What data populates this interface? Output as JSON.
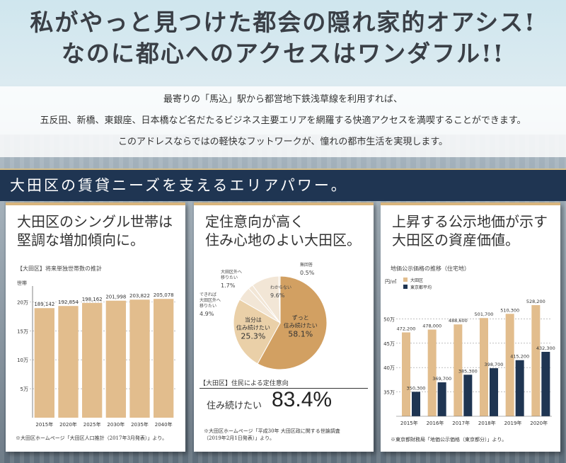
{
  "headline": {
    "line1": "私がやっと見つけた都会の隠れ家的オアシス!",
    "line2": "なのに都心へのアクセスはワンダフル!!"
  },
  "intro": {
    "l1": "最寄りの「馬込」駅から都営地下鉄浅草線を利用すれば、",
    "l2": "五反田、新橋、東銀座、日本橋など名だたるビジネス主要エリアを網羅する快適アクセスを満喫することができます。",
    "l3": "このアドレスならではの軽快なフットワークが、憧れの都市生活を実現します。"
  },
  "band": {
    "title": "大田区の賃貸ニーズを支えるエリアパワー。"
  },
  "panel1": {
    "title": "大田区のシングル世帯は\n堅調な増加傾向に。",
    "subtitle": "【大田区】将来単独世帯数の推計",
    "footnote": "※大田区ホームページ「大田区人口推計（2017年3月発表）」より。"
  },
  "panel2": {
    "title": "定住意向が高く\n住み心地のよい大田区。",
    "subheader": "【大田区】住民による定住意向",
    "big_label": "住み続けたい",
    "big_value": "83.4%",
    "footnote": "※大田区ホームページ「平成30年 大田区政に関する世論調査\n（2019年2月1日発表）」より。"
  },
  "panel3": {
    "title": "上昇する公示地価が示す\n大田区の資産価値。",
    "subtitle": "地価公示価格の推移（住宅地）",
    "footnote": "※東京都財務局「地価公示価格（東京都分）」より。"
  },
  "colors": {
    "tan": "#e2bd8d",
    "navy": "#1f3552",
    "pie_main": "#d2a062",
    "pie_light": "#ead0a8",
    "pie_pale": "#f2e6d6"
  },
  "chart_data": [
    {
      "type": "bar",
      "categories": [
        "2015年",
        "2020年",
        "2025年",
        "2030年",
        "2035年",
        "2040年"
      ],
      "values": [
        189142,
        192854,
        198162,
        201998,
        203822,
        205078
      ],
      "value_labels": [
        "189,142",
        "192,854",
        "198,162",
        "201,998",
        "203,822",
        "205,078"
      ],
      "ylim": [
        0,
        220000
      ],
      "yticks": [
        {
          "v": 50000,
          "label": "5万"
        },
        {
          "v": 100000,
          "label": "10万"
        },
        {
          "v": 150000,
          "label": "15万"
        },
        {
          "v": 200000,
          "label": "20万"
        }
      ],
      "ylabel": "世帯",
      "grid": true
    },
    {
      "type": "pie",
      "slices": [
        {
          "label": "ずっと\n住み続けたい",
          "value": 58.1,
          "color": "#d2a062"
        },
        {
          "label": "当分は\n住み続けたい",
          "value": 25.3,
          "color": "#ead0a8"
        },
        {
          "label": "できれば\n大田区外へ\n移りたい",
          "value": 4.9,
          "color": "#f2e6d6"
        },
        {
          "label": "大田区外へ\n移りたい",
          "value": 1.7,
          "color": "#f2e6d6"
        },
        {
          "label": "わからない",
          "value": 9.6,
          "color": "#f2e6d6"
        },
        {
          "label": "無回答",
          "value": 0.5,
          "color": "#f2e6d6"
        }
      ],
      "value_labels": [
        "58.1%",
        "25.3%",
        "4.9%",
        "1.7%",
        "9.6%",
        "0.5%"
      ]
    },
    {
      "type": "bar",
      "categories": [
        "2015年",
        "2016年",
        "2017年",
        "2018年",
        "2019年",
        "2020年"
      ],
      "ylabel": "円/㎡",
      "ylim": [
        300000,
        550000
      ],
      "yticks": [
        {
          "v": 350000,
          "label": "35万"
        },
        {
          "v": 400000,
          "label": "40万"
        },
        {
          "v": 450000,
          "label": "45万"
        },
        {
          "v": 500000,
          "label": "50万"
        }
      ],
      "series": [
        {
          "name": "大田区",
          "values": [
            472200,
            478000,
            488600,
            501700,
            510300,
            528200
          ],
          "labels": [
            "472,200",
            "478,000",
            "488,600",
            "501,700",
            "510,300",
            "528,200"
          ],
          "color": "#e2bd8d"
        },
        {
          "name": "東京都平均",
          "values": [
            350300,
            369700,
            385300,
            398700,
            415200,
            432300
          ],
          "labels": [
            "350,300",
            "369,700",
            "385,300",
            "398,700",
            "415,200",
            "432,300"
          ],
          "color": "#1f3552"
        }
      ]
    }
  ]
}
